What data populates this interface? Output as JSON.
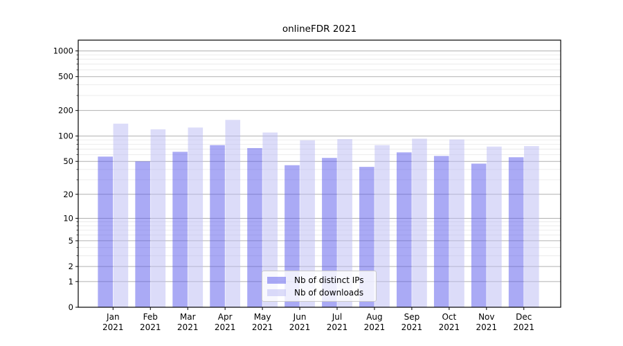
{
  "title": "onlineFDR 2021",
  "chart_data": {
    "type": "bar",
    "title": "onlineFDR 2021",
    "yscale": "log1p",
    "grid": true,
    "legend_position": "lower center",
    "background_color": "#ffffff",
    "grid_major_color": "#b0b0b0",
    "grid_minor_color": "#e7e7e7",
    "axis_color": "#000000",
    "year_label": "2021",
    "categories": [
      "Jan",
      "Feb",
      "Mar",
      "Apr",
      "May",
      "Jun",
      "Jul",
      "Aug",
      "Sep",
      "Oct",
      "Nov",
      "Dec"
    ],
    "series": [
      {
        "name": "Nb of distinct IPs",
        "color": "rgba(85,85,235,0.5)",
        "values": [
          57,
          50,
          65,
          78,
          72,
          45,
          55,
          43,
          64,
          58,
          47,
          56
        ]
      },
      {
        "name": "Nb of downloads",
        "color": "rgba(185,185,243,0.5)",
        "values": [
          140,
          120,
          126,
          155,
          110,
          89,
          92,
          78,
          93,
          91,
          75,
          76
        ]
      }
    ],
    "y_ticks": [
      0,
      1,
      2,
      5,
      10,
      20,
      50,
      100,
      200,
      500,
      1000
    ],
    "y_minor_ticks": [
      3,
      4,
      6,
      7,
      8,
      9,
      30,
      40,
      60,
      70,
      80,
      90,
      300,
      400,
      600,
      700,
      800,
      900
    ],
    "ylim": [
      0,
      1330
    ]
  }
}
